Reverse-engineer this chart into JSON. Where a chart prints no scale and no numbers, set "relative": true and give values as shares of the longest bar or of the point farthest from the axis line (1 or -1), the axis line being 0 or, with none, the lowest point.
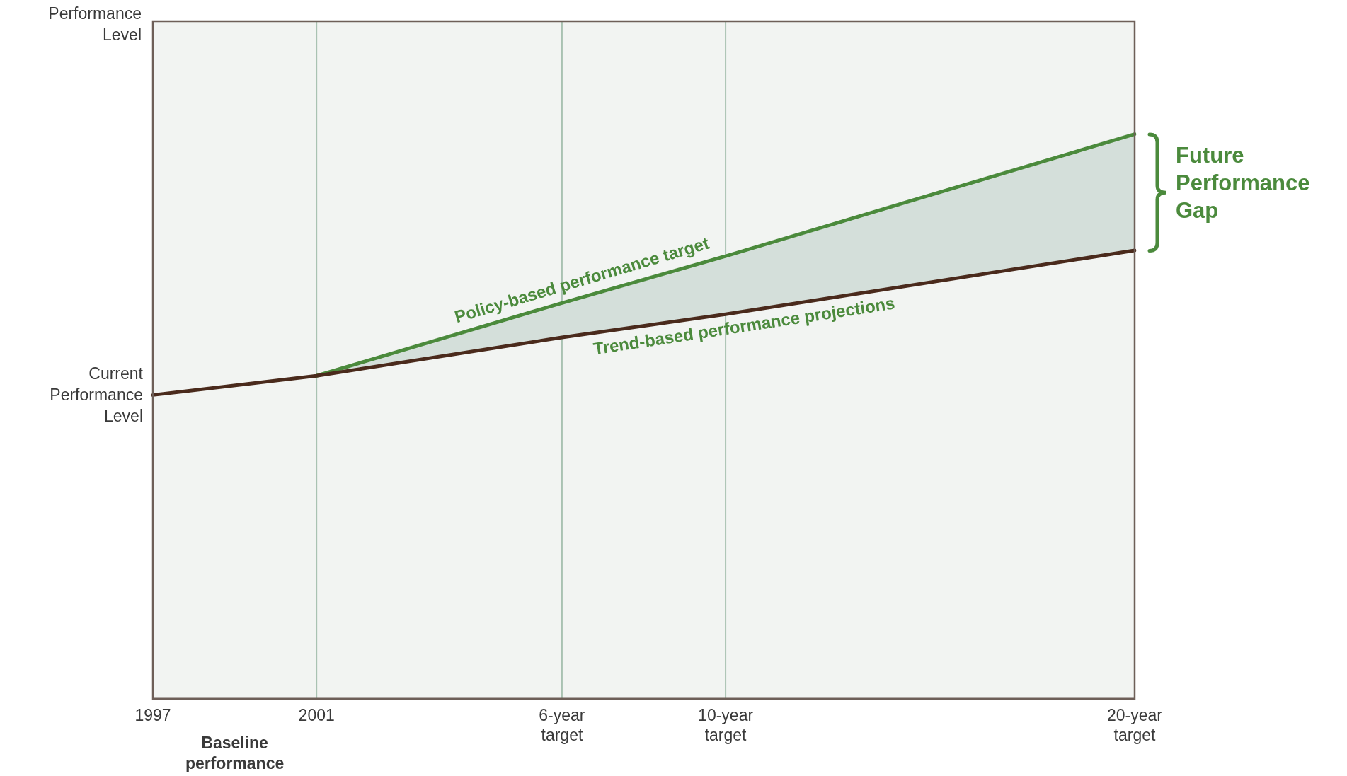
{
  "chart_data": {
    "type": "line",
    "relative": true,
    "categories": [
      "1997",
      null,
      "2001",
      null,
      null,
      "6-year target",
      null,
      "10-year target",
      null,
      null,
      null,
      null,
      "20-year target"
    ],
    "grid": "x",
    "legend": false,
    "marker": "none",
    "line_style": "solid",
    "series": [
      {
        "name": "Trend-based performance projections",
        "color": "#4a2a1c",
        "values": [
          0.538,
          null,
          0.572,
          null,
          null,
          0.64,
          null,
          0.681,
          null,
          null,
          null,
          null,
          0.794
        ]
      },
      {
        "name": "Policy-based performance target",
        "color": "#4b8a3c",
        "values": [
          null,
          null,
          0.572,
          null,
          null,
          0.701,
          null,
          0.784,
          null,
          null,
          null,
          null,
          1
        ],
        "lower": [
          null,
          null,
          0.572,
          null,
          null,
          0.64,
          null,
          0.681,
          null,
          null,
          null,
          null,
          0.794
        ],
        "upper": [
          null,
          null,
          0.572,
          null,
          null,
          0.701,
          null,
          0.784,
          null,
          null,
          null,
          null,
          1
        ]
      }
    ],
    "annotations": [
      "Performance Level",
      {
        "text": "Current Performance Level",
        "x": "1997",
        "y": 0.538
      },
      "Baseline performance",
      "Future Performance Gap"
    ]
  }
}
